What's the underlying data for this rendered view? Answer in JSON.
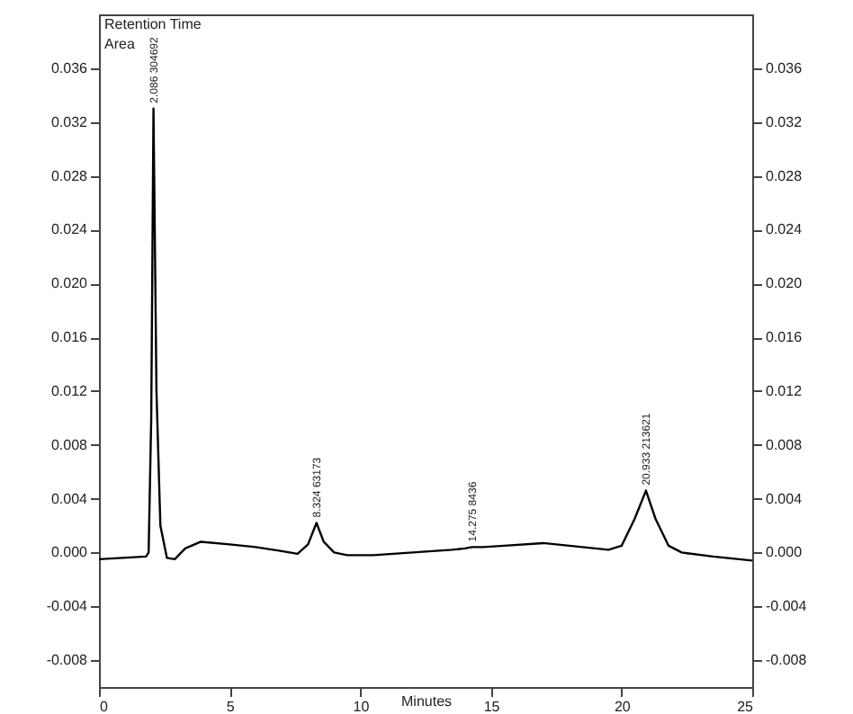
{
  "chart_data": {
    "type": "line",
    "xlabel": "Minutes",
    "x": [
      0,
      1.8,
      1.9,
      2.0,
      2.086,
      2.2,
      2.35,
      2.6,
      2.9,
      3.3,
      3.9,
      5,
      6,
      7,
      7.6,
      8.0,
      8.324,
      8.6,
      9.0,
      9.5,
      10.5,
      12,
      13.5,
      14,
      14.275,
      14.7,
      15.5,
      17,
      18.5,
      19.5,
      20,
      20.5,
      20.933,
      21.3,
      21.8,
      22.3,
      23.5,
      25
    ],
    "series": [
      {
        "color": "#000000",
        "values": [
          -0.0005,
          -0.0003,
          0.0,
          0.01,
          0.033,
          0.012,
          0.002,
          -0.0004,
          -0.0005,
          0.0003,
          0.0008,
          0.0006,
          0.0004,
          0.0001,
          -0.0001,
          0.0006,
          0.0022,
          0.0008,
          0.0,
          -0.0002,
          -0.0002,
          0.0,
          0.0002,
          0.0003,
          0.0004,
          0.0004,
          0.0005,
          0.0007,
          0.0004,
          0.0002,
          0.0005,
          0.0025,
          0.0046,
          0.0025,
          0.0005,
          0.0,
          -0.0003,
          -0.0006
        ]
      }
    ],
    "xlim": [
      0,
      25
    ],
    "xticks": [
      0,
      5,
      10,
      15,
      20,
      25
    ],
    "ylim": [
      -0.01,
      0.04
    ],
    "yticks": [
      {
        "value": -0.008,
        "label": "-0.008"
      },
      {
        "value": -0.004,
        "label": "-0.004"
      },
      {
        "value": 0,
        "label": "0.000"
      },
      {
        "value": 0.004,
        "label": "0.004"
      },
      {
        "value": 0.008,
        "label": "0.008"
      },
      {
        "value": 0.012,
        "label": "0.012"
      },
      {
        "value": 0.016,
        "label": "0.016"
      },
      {
        "value": 0.02,
        "label": "0.020"
      },
      {
        "value": 0.024,
        "label": "0.024"
      },
      {
        "value": 0.028,
        "label": "0.028"
      },
      {
        "value": 0.032,
        "label": "0.032"
      },
      {
        "value": 0.036,
        "label": "0.036"
      }
    ],
    "y2lim": [
      -0.01,
      0.04
    ],
    "y2ticks": [
      {
        "value": -0.008,
        "label": "-0.008"
      },
      {
        "value": -0.004,
        "label": "-0.004"
      },
      {
        "value": 0,
        "label": "0.000"
      },
      {
        "value": 0.004,
        "label": "0.004"
      },
      {
        "value": 0.008,
        "label": "0.008"
      },
      {
        "value": 0.012,
        "label": "0.012"
      },
      {
        "value": 0.016,
        "label": "0.016"
      },
      {
        "value": 0.02,
        "label": "0.020"
      },
      {
        "value": 0.024,
        "label": "0.024"
      },
      {
        "value": 0.028,
        "label": "0.028"
      },
      {
        "value": 0.032,
        "label": "0.032"
      },
      {
        "value": 0.036,
        "label": "0.036"
      }
    ],
    "grid": false,
    "line_style": "solid",
    "annotations": [
      "Retention Time",
      "Area",
      {
        "text": "2.086 304692",
        "x": 2.086,
        "y": 0.033
      },
      {
        "text": "8.324 63173",
        "x": 8.324,
        "y": 0.0022
      },
      {
        "text": "14.275 8436",
        "x": 14.275,
        "y": 0.0004
      },
      {
        "text": "20.933 213621",
        "x": 20.933,
        "y": 0.0046
      }
    ]
  }
}
